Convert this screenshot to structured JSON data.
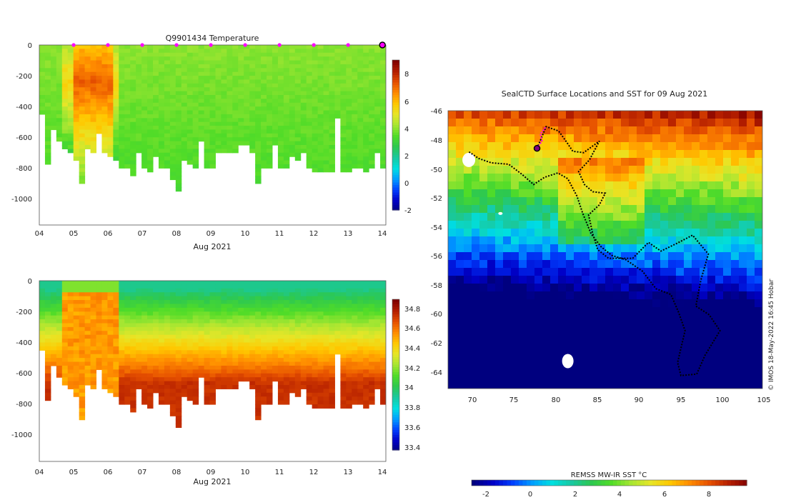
{
  "colors": {
    "jet": [
      "#00007f",
      "#0000c8",
      "#0040ff",
      "#009fff",
      "#00e0e0",
      "#19c8a0",
      "#2dc850",
      "#50dc28",
      "#a5e632",
      "#e6e628",
      "#ffc800",
      "#ff8c00",
      "#e65000",
      "#b41e00",
      "#800000"
    ],
    "temp_profile": [
      "#00a050",
      "#10b464",
      "#18c080",
      "#30c848",
      "#78d430",
      "#d4dc28",
      "#f0c418",
      "#f4a40c",
      "#e87808",
      "#d85004",
      "#c03000"
    ],
    "sal_profile": [
      "#20b04c",
      "#30c048",
      "#5cd030",
      "#b4dc28",
      "#ecd020",
      "#f8b810",
      "#f09808",
      "#e47c04",
      "#d86004",
      "#c84404"
    ],
    "ocean_deep": "#00008c",
    "land": "#ffffff",
    "marker": "#ff00ff",
    "marker_dark": "#800080",
    "track": "#000000"
  },
  "chart_data": [
    {
      "type": "heatmap",
      "title": "Q9901434  Temperature",
      "xlabel": "Aug 2021",
      "x_ticks": [
        "04",
        "05",
        "06",
        "07",
        "08",
        "09",
        "10",
        "11",
        "12",
        "13",
        "14"
      ],
      "x_range_days": [
        4,
        14.1
      ],
      "y_ticks": [
        "0",
        "-200",
        "-400",
        "-600",
        "-800",
        "-1000"
      ],
      "y_range": [
        -1170,
        0
      ],
      "colorbar": {
        "range": [
          -2,
          9.3
        ],
        "ticks": [
          "8",
          "6",
          "4",
          "2",
          "0",
          "-2"
        ],
        "tick_values": [
          8,
          6,
          4,
          2,
          0,
          -2
        ]
      },
      "surfacing_markers_day": [
        5,
        6,
        7,
        8,
        9,
        10,
        11,
        12,
        13,
        14
      ],
      "profile_depths_m": [
        430,
        770,
        540,
        620,
        670,
        700,
        750,
        900,
        660,
        700,
        570,
        700,
        720,
        750,
        790,
        790,
        830,
        690,
        800,
        820,
        710,
        790,
        780,
        870,
        940,
        730,
        760,
        790,
        620,
        790,
        790,
        700,
        700,
        700,
        700,
        640,
        650,
        700,
        900,
        790,
        780,
        650,
        780,
        780,
        720,
        740,
        700,
        800,
        810,
        810,
        820,
        820,
        460,
        820,
        820,
        790,
        790,
        820,
        780,
        680,
        800
      ],
      "profile_depth_pattern": {
        "warm_core_days": [
          4.6,
          6.4
        ],
        "surface_value": 4.2,
        "deep_value": 3.1
      }
    },
    {
      "type": "heatmap",
      "title": "",
      "xlabel": "Aug 2021",
      "x_ticks": [
        "04",
        "05",
        "06",
        "07",
        "08",
        "09",
        "10",
        "11",
        "12",
        "13",
        "14"
      ],
      "x_range_days": [
        4,
        14.1
      ],
      "y_ticks": [
        "0",
        "-200",
        "-400",
        "-600",
        "-800",
        "-1000"
      ],
      "y_range": [
        -1170,
        0
      ],
      "colorbar": {
        "range": [
          33.38,
          34.9
        ],
        "ticks": [
          "34.8",
          "34.6",
          "34.4",
          "34.2",
          "34",
          "33.8",
          "33.6",
          "33.4"
        ],
        "tick_values": [
          34.8,
          34.6,
          34.4,
          34.2,
          34.0,
          33.8,
          33.6,
          33.4
        ]
      }
    },
    {
      "type": "heatmap",
      "title": "SealCTD Surface Locations and SST for 09 Aug 2021",
      "xlabel": "REMSS MW-IR SST °C",
      "x_ticks": [
        "70",
        "75",
        "80",
        "85",
        "90",
        "95",
        "100",
        "105"
      ],
      "x_range_lon": [
        67.2,
        105
      ],
      "y_ticks": [
        "-46",
        "-48",
        "-50",
        "-52",
        "-54",
        "-56",
        "-58",
        "-60",
        "-62",
        "-64"
      ],
      "y_range_lat": [
        -65.2,
        -46
      ],
      "colorbar": {
        "range": [
          -2.6,
          9.8
        ],
        "ticks": [
          "-2",
          "0",
          "2",
          "4",
          "6",
          "8"
        ],
        "tick_values": [
          -2,
          0,
          2,
          4,
          6,
          8
        ]
      },
      "track_lonlat": [
        [
          77.9,
          -48.6
        ],
        [
          79,
          -47.1
        ],
        [
          80.5,
          -47.4
        ],
        [
          81.5,
          -48.2
        ],
        [
          82.2,
          -48.8
        ],
        [
          83.5,
          -48.9
        ],
        [
          85.4,
          -48.1
        ],
        [
          84.2,
          -49.4
        ],
        [
          82.9,
          -50.2
        ],
        [
          83.6,
          -51.1
        ],
        [
          84.6,
          -51.6
        ],
        [
          86.1,
          -51.7
        ],
        [
          85.4,
          -52.5
        ],
        [
          84.1,
          -53.2
        ],
        [
          84.6,
          -54.5
        ],
        [
          85.2,
          -55.6
        ],
        [
          86.5,
          -56.2
        ],
        [
          89.4,
          -56.2
        ],
        [
          91.3,
          -55.1
        ],
        [
          92.8,
          -55.7
        ],
        [
          94.6,
          -55.2
        ],
        [
          96.6,
          -54.6
        ],
        [
          98.5,
          -55.9
        ],
        [
          97.6,
          -57.7
        ],
        [
          97,
          -59.5
        ],
        [
          98.6,
          -60.1
        ],
        [
          99.9,
          -61.2
        ],
        [
          98.1,
          -62.9
        ],
        [
          97.1,
          -64.2
        ],
        [
          95.2,
          -64.3
        ],
        [
          94.8,
          -63.4
        ],
        [
          95.7,
          -61.2
        ],
        [
          94.9,
          -59.9
        ],
        [
          94,
          -58.7
        ],
        [
          92.2,
          -58.3
        ],
        [
          90.6,
          -57.1
        ],
        [
          88.6,
          -56.3
        ],
        [
          86.9,
          -56
        ],
        [
          85.6,
          -55.4
        ],
        [
          84.4,
          -54.5
        ],
        [
          83.4,
          -53.1
        ],
        [
          82.7,
          -51.9
        ],
        [
          81.6,
          -50.7
        ],
        [
          80.4,
          -50.3
        ],
        [
          78.8,
          -50.6
        ],
        [
          77.5,
          -51.1
        ],
        [
          76.1,
          -50.4
        ],
        [
          74.5,
          -49.7
        ],
        [
          72.4,
          -49.6
        ],
        [
          70.9,
          -49.3
        ],
        [
          69.6,
          -48.8
        ]
      ],
      "recent_track_lonlat": [
        [
          77.9,
          -48.6
        ],
        [
          78.5,
          -48.1
        ],
        [
          78.3,
          -47.6
        ],
        [
          79,
          -47.1
        ]
      ],
      "current_position_lonlat": [
        77.9,
        -48.6
      ]
    }
  ],
  "credit": "© IMOS 18-May-2022 16:45 Hobart"
}
